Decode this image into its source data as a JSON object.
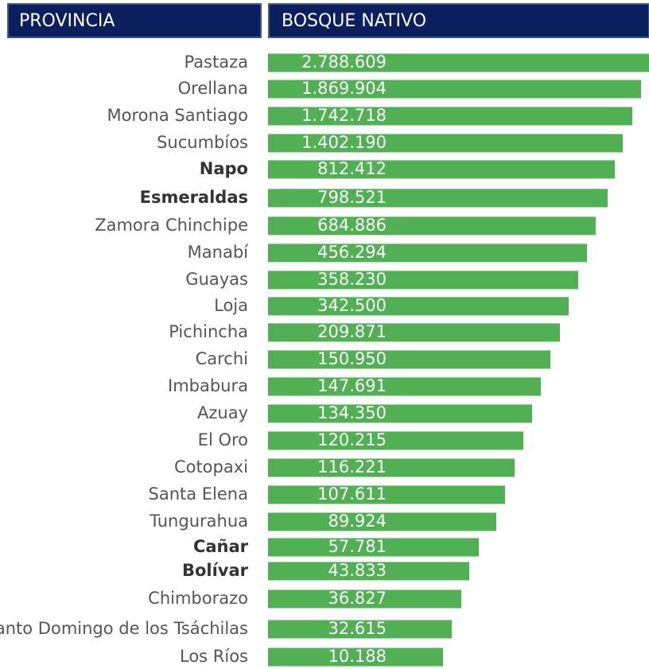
{
  "header": [
    "PROVINCIA",
    "BOSQUE NATIVO"
  ],
  "rows": [
    [
      "Pastaza",
      "2.788.609"
    ],
    [
      "Orellana",
      "1.869.904"
    ],
    [
      "Morona Santiago",
      "1.742.718"
    ],
    [
      "Sucumbíos",
      "1.402.190"
    ],
    [
      "Napo",
      "812.412"
    ],
    [
      "Esmeraldas",
      "798.521"
    ],
    [
      "Zamora Chinchipe",
      "684.886"
    ],
    [
      "Manabí",
      "456.294"
    ],
    [
      "Guayas",
      "358.230"
    ],
    [
      "Loja",
      "342.500"
    ],
    [
      "Pichincha",
      "209.871"
    ],
    [
      "Carchi",
      "150.950"
    ],
    [
      "Imbabura",
      "147.691"
    ],
    [
      "Azuay",
      "134.350"
    ],
    [
      "El Oro",
      "120.215"
    ],
    [
      "Cotopaxi",
      "116.221"
    ],
    [
      "Santa Elena",
      "107.611"
    ],
    [
      "Tungurahua",
      "89.924"
    ],
    [
      "Cañar",
      "57.781"
    ],
    [
      "Bolívar",
      "43.833"
    ],
    [
      "Chimborazo",
      "36.827"
    ],
    [
      "Santo Domingo de los Tsáchilas",
      "32.615"
    ],
    [
      "Los Ríos",
      "10.188"
    ]
  ]
}
